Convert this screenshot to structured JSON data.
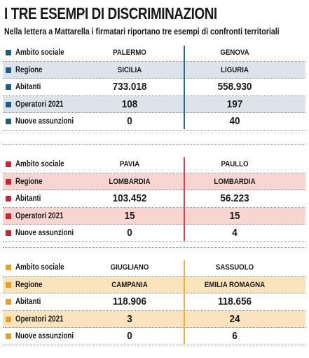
{
  "title": "I TRE ESEMPI DI DISCRIMINAZIONI",
  "subtitle": "Nella lettera a Mattarella i firmatari riportano tre esempi di confronti territoriali",
  "groups": [
    {
      "rows": [
        {
          "label": "Ambito sociale",
          "values": [
            "PALERMO",
            "GENOVA"
          ]
        },
        {
          "label": "Regione",
          "values": [
            "SICILIA",
            "LIGURIA"
          ]
        },
        {
          "label": "Abitanti",
          "values": [
            "733.018",
            "558.930"
          ]
        },
        {
          "label": "Operatori 2021",
          "values": [
            "108",
            "197"
          ]
        },
        {
          "label": "Nuove assunzioni",
          "values": [
            "0",
            "40"
          ]
        }
      ]
    },
    {
      "rows": [
        {
          "label": "Ambito sociale",
          "values": [
            "PAVIA",
            "PAULLO"
          ]
        },
        {
          "label": "Regione",
          "values": [
            "LOMBARDIA",
            "LOMBARDIA"
          ]
        },
        {
          "label": "Abitanti",
          "values": [
            "103.452",
            "56.223"
          ]
        },
        {
          "label": "Operatori 2021",
          "values": [
            "15",
            "15"
          ]
        },
        {
          "label": "Nuove assunzioni",
          "values": [
            "0",
            "4"
          ]
        }
      ]
    },
    {
      "rows": [
        {
          "label": "Ambito sociale",
          "values": [
            "GIUGLIANO",
            "SASSUOLO"
          ]
        },
        {
          "label": "Regione",
          "values": [
            "CAMPANIA",
            "EMILIA ROMAGNA"
          ]
        },
        {
          "label": "Abitanti",
          "values": [
            "118.906",
            "118.656"
          ]
        },
        {
          "label": "Operatori 2021",
          "values": [
            "3",
            "24"
          ]
        },
        {
          "label": "Nuove assunzioni",
          "values": [
            "0",
            "6"
          ]
        }
      ]
    }
  ]
}
